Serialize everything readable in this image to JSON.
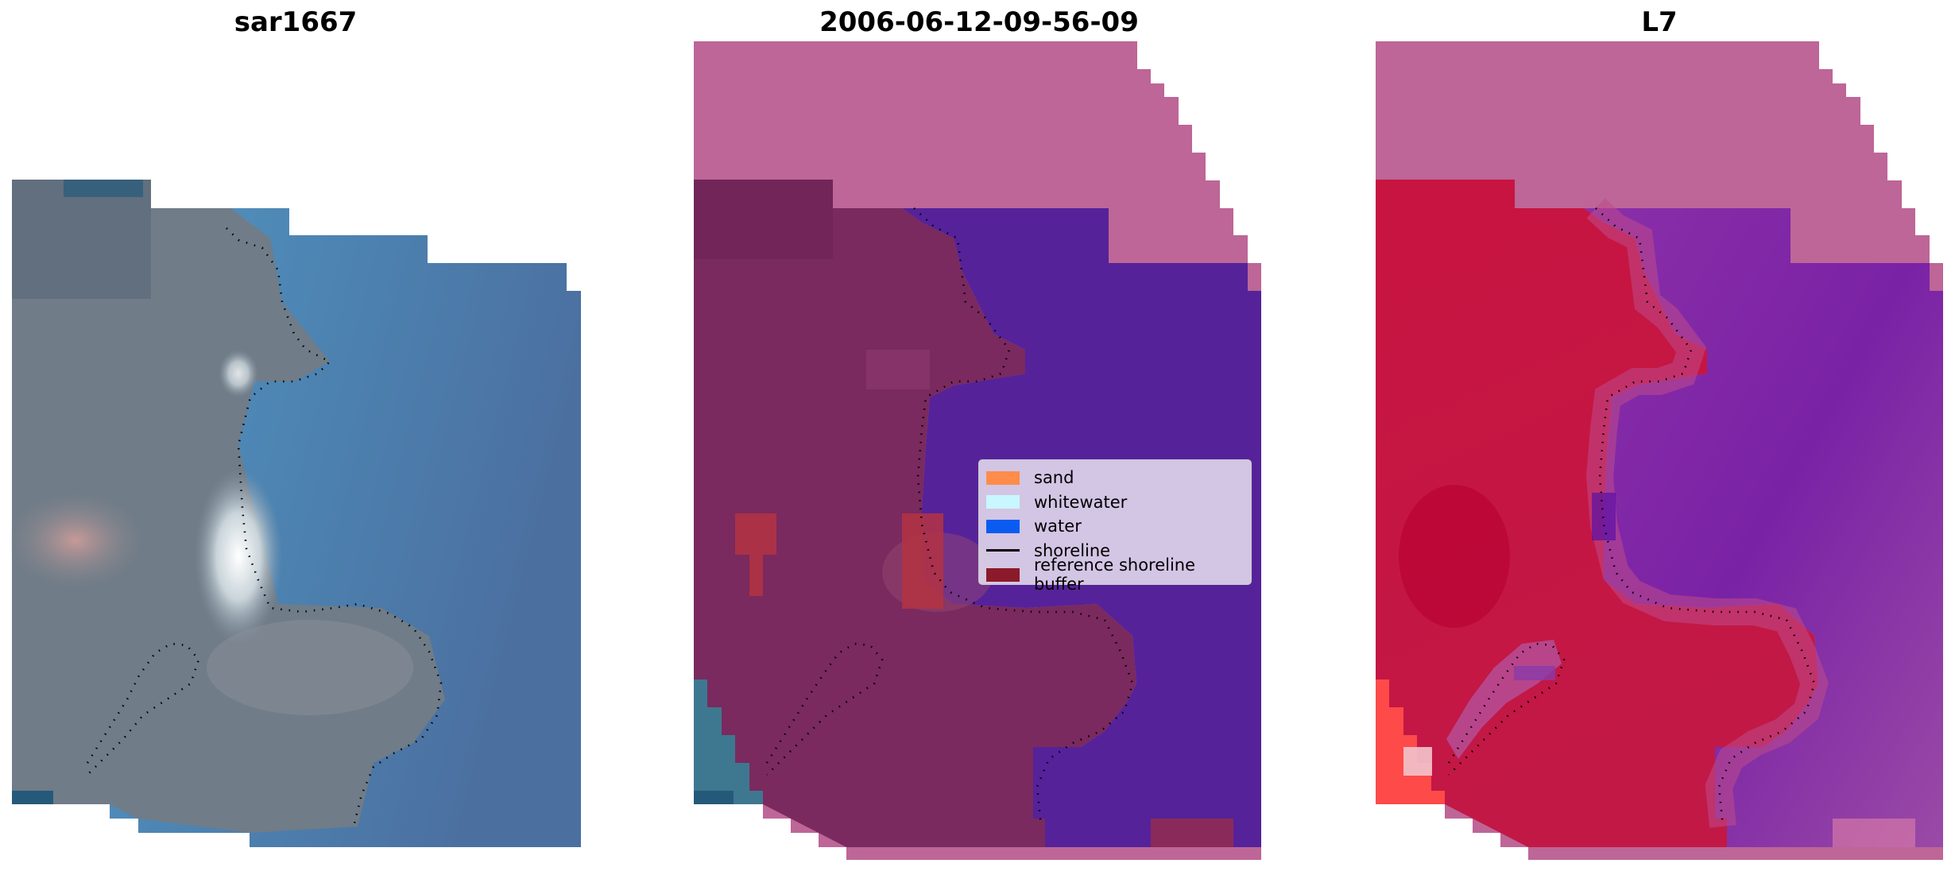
{
  "panels": [
    {
      "title": "sar1667"
    },
    {
      "title": "2006-06-12-09-56-09"
    },
    {
      "title": "L7"
    }
  ],
  "legend": {
    "items": [
      {
        "label": "sand",
        "color": "#ff8c4a",
        "kind": "patch"
      },
      {
        "label": "whitewater",
        "color": "#c8f7ff",
        "kind": "patch"
      },
      {
        "label": "water",
        "color": "#0a5cf0",
        "kind": "patch"
      },
      {
        "label": "shoreline",
        "color": "#000000",
        "kind": "line"
      },
      {
        "label": "reference shoreline buffer",
        "color": "#8b1a2a",
        "kind": "patch"
      }
    ]
  },
  "colors": {
    "nodata_pink": "#bd6697",
    "land_maroon": "#7a2a5e",
    "water_purple": "#56229a",
    "rgb_water_blue": "#4a7fae",
    "rgb_land_grey": "#6e7a86",
    "mndwi_land_red": "#c0163f",
    "mndwi_water_purple": "#8a3aa8"
  }
}
